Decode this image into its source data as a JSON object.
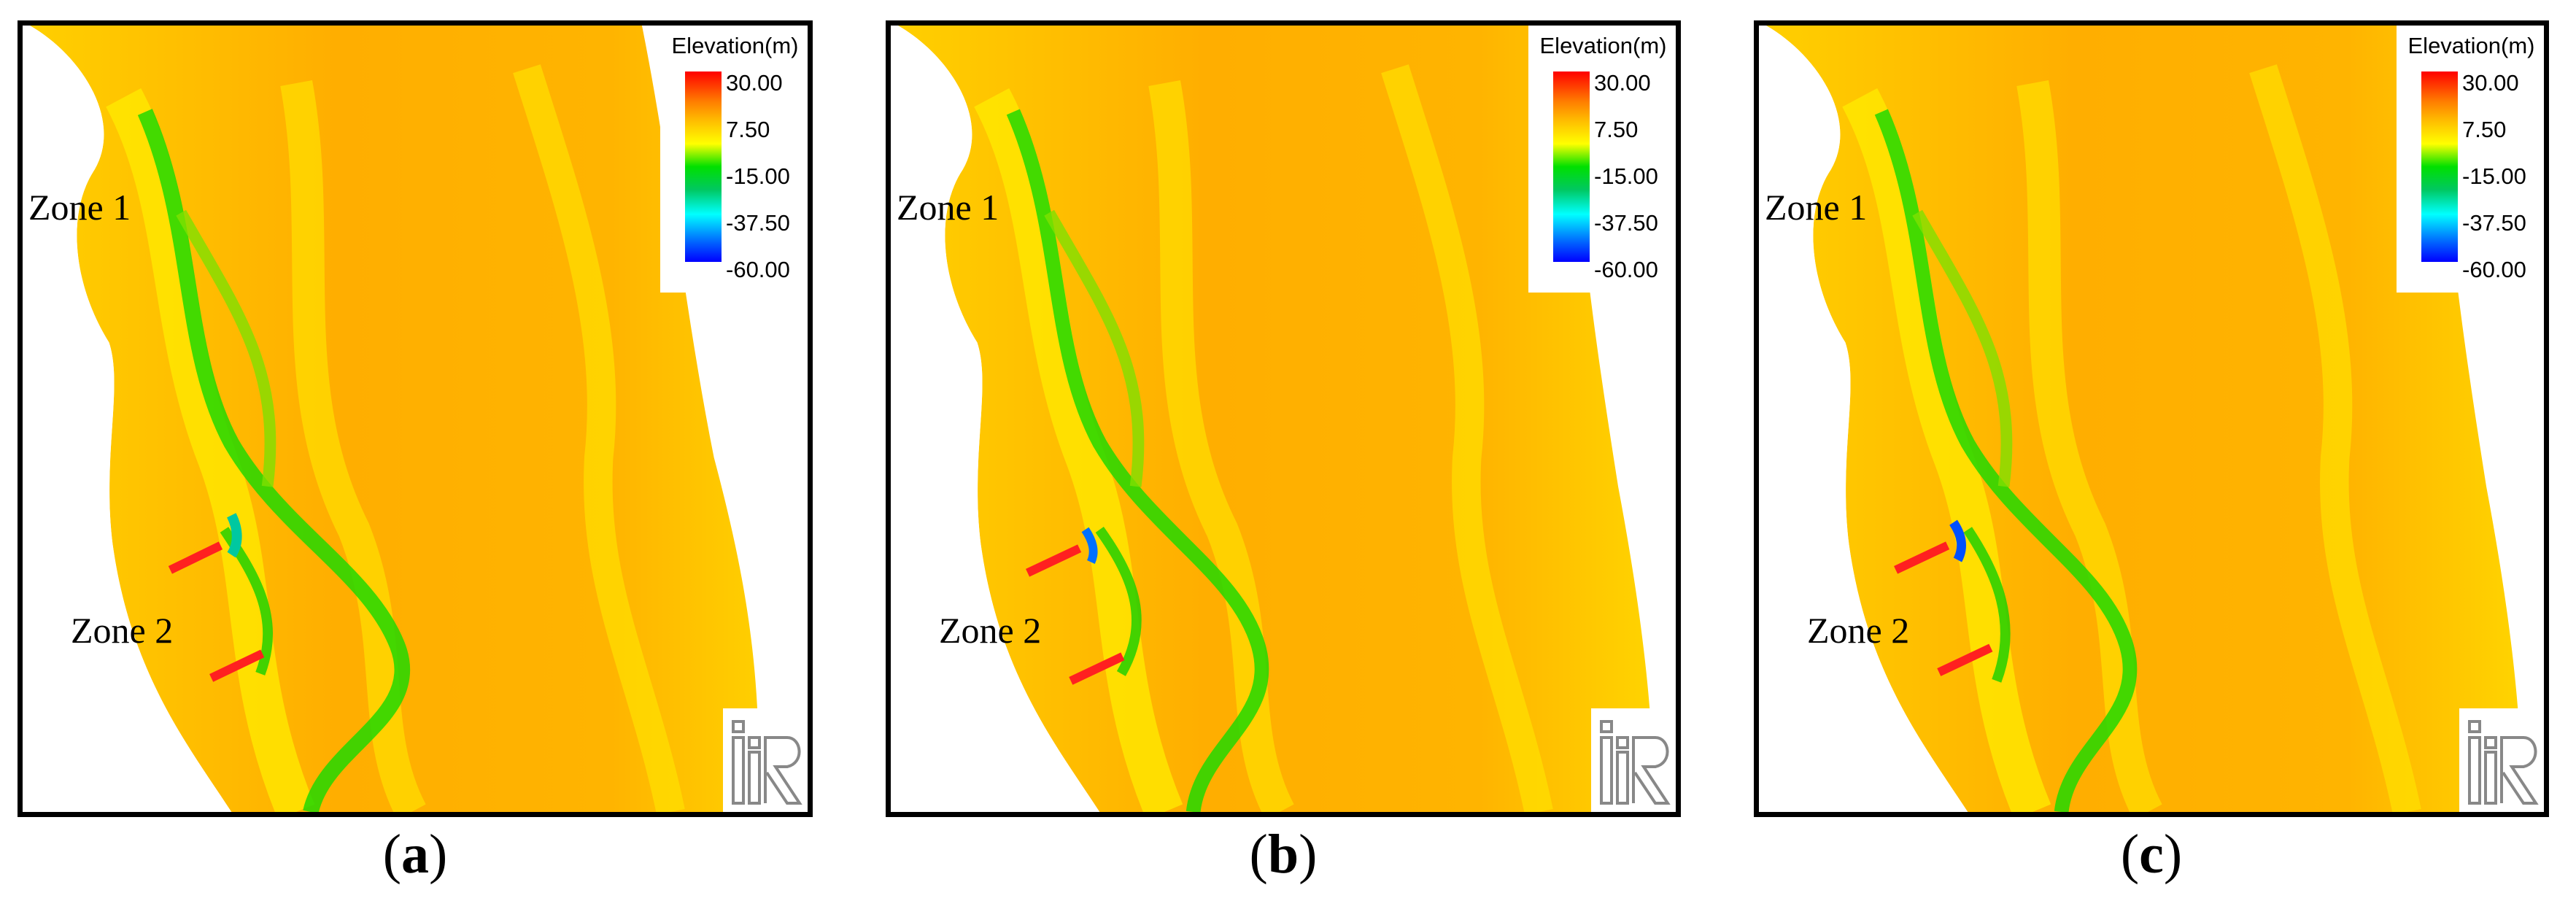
{
  "legend": {
    "title": "Elevation(m)",
    "ticks": [
      "30.00",
      "7.50",
      "-15.00",
      "-37.50",
      "-60.00"
    ],
    "colors": [
      "#ff0000",
      "#ffb000",
      "#00e000",
      "#00ffff",
      "#0000ff"
    ]
  },
  "panels": [
    {
      "caption_open": "(",
      "caption_letter": "a",
      "caption_close": ")",
      "zone1": "Zone 1",
      "zone2": "Zone 2"
    },
    {
      "caption_open": "(",
      "caption_letter": "b",
      "caption_close": ")",
      "zone1": "Zone 1",
      "zone2": "Zone 2"
    },
    {
      "caption_open": "(",
      "caption_letter": "c",
      "caption_close": ")",
      "zone1": "Zone 1",
      "zone2": "Zone 2"
    }
  ],
  "colors": {
    "river_base": "#ffb000",
    "deep_channel": "#00d000",
    "shallow": "#ffe600",
    "bank": "#ffffff",
    "structure": "#ff2020"
  },
  "logo_icon": "iric-logo-icon"
}
